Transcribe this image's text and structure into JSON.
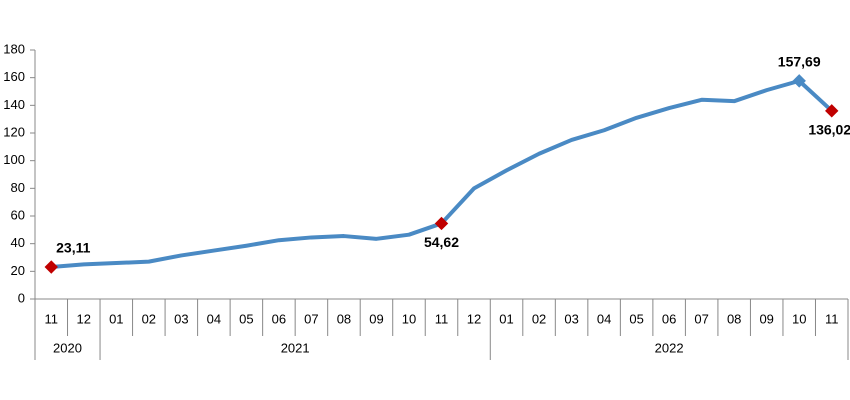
{
  "chart_data": {
    "type": "line",
    "categories": [
      "11",
      "12",
      "01",
      "02",
      "03",
      "04",
      "05",
      "06",
      "07",
      "08",
      "09",
      "10",
      "11",
      "12",
      "01",
      "02",
      "03",
      "04",
      "05",
      "06",
      "07",
      "08",
      "09",
      "10",
      "11"
    ],
    "years": [
      "2020",
      null,
      "2021",
      null,
      null,
      null,
      null,
      null,
      null,
      null,
      null,
      null,
      null,
      null,
      "2022",
      null,
      null,
      null,
      null,
      null,
      null,
      null,
      null,
      null,
      null
    ],
    "values": [
      23.11,
      25,
      26,
      27,
      31.5,
      35,
      38.5,
      42.5,
      44.5,
      45.5,
      43.5,
      46.5,
      54.62,
      80,
      93,
      105,
      115,
      122,
      131,
      138,
      144,
      143,
      151,
      157.69,
      136.02
    ],
    "value_labels": [
      "23,11",
      null,
      null,
      null,
      null,
      null,
      null,
      null,
      null,
      null,
      null,
      null,
      "54,62",
      null,
      null,
      null,
      null,
      null,
      null,
      null,
      null,
      null,
      null,
      "157,69",
      "136,02"
    ],
    "marker_colors": [
      "#c00000",
      null,
      null,
      null,
      null,
      null,
      null,
      null,
      null,
      null,
      null,
      null,
      "#c00000",
      null,
      null,
      null,
      null,
      null,
      null,
      null,
      null,
      null,
      null,
      "#4a8ac4",
      "#c00000"
    ],
    "color": "#4a8ac4",
    "ylim": [
      0,
      180
    ],
    "yticks": [
      0,
      20,
      40,
      60,
      80,
      100,
      120,
      140,
      160,
      180
    ]
  }
}
